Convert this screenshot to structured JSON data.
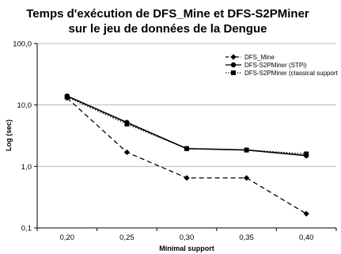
{
  "chart_data": {
    "type": "line",
    "title_line1": "Temps d'exécution de DFS_Mine et DFS-S2PMiner",
    "title_line2": "sur le jeu de données de la Dengue",
    "xlabel": "Minimal support",
    "ylabel": "Log (sec)",
    "y_scale": "log",
    "ylim": [
      0.1,
      100
    ],
    "y_ticks": [
      {
        "value": 100,
        "label": "100,0"
      },
      {
        "value": 10,
        "label": "10,0"
      },
      {
        "value": 1,
        "label": "1,0"
      },
      {
        "value": 0.1,
        "label": "0,1"
      }
    ],
    "categories": [
      "0,20",
      "0,25",
      "0,30",
      "0,35",
      "0,40"
    ],
    "grid": "horizontal",
    "legend_position": "top-right",
    "series": [
      {
        "name": "DFS_Mine",
        "values": [
          13.0,
          1.7,
          0.65,
          0.65,
          0.17
        ],
        "style": "dashed",
        "marker": "diamond",
        "color": "#000000"
      },
      {
        "name": "DFS-S2PMiner (STPi)",
        "values": [
          14.0,
          5.2,
          1.95,
          1.85,
          1.5
        ],
        "style": "solid",
        "marker": "circle",
        "color": "#000000"
      },
      {
        "name": "DFS-S2PMiner (classical support",
        "values": [
          13.5,
          4.9,
          1.95,
          1.85,
          1.6
        ],
        "style": "dotted",
        "marker": "square",
        "color": "#000000"
      }
    ]
  }
}
